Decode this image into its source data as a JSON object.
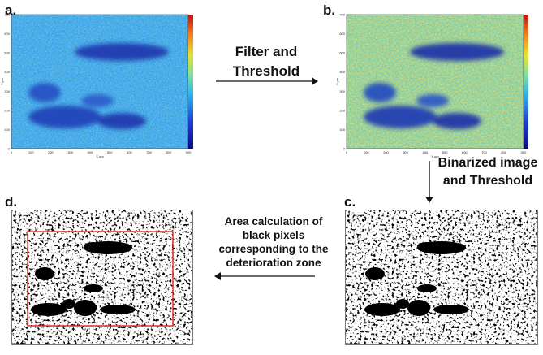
{
  "panels": {
    "a": {
      "label": "a.",
      "xlabel": "X µm",
      "ylabel": "Y µm",
      "xticks": [
        "0",
        "100",
        "200",
        "300",
        "400",
        "500",
        "600",
        "700",
        "800",
        "900"
      ],
      "yticks": [
        "0",
        "100",
        "200",
        "300",
        "400",
        "500",
        "600",
        "700"
      ],
      "colorbar_ticks": [
        "",
        "",
        "",
        "",
        "",
        "",
        "",
        "",
        "",
        ""
      ]
    },
    "b": {
      "label": "b.",
      "xlabel": "X µm",
      "ylabel": "Y µm",
      "xticks": [
        "0",
        "100",
        "200",
        "300",
        "400",
        "500",
        "600",
        "700",
        "800",
        "900"
      ],
      "yticks": [
        "0",
        "100",
        "200",
        "300",
        "400",
        "500",
        "600",
        "700"
      ],
      "colorbar_ticks": [
        "",
        "",
        "",
        "",
        "",
        "",
        "",
        "",
        "",
        ""
      ]
    },
    "c": {
      "label": "c."
    },
    "d": {
      "label": "d."
    }
  },
  "steps": {
    "filter_threshold": "Filter and Threshold",
    "binarized": "Binarized image and Threshold",
    "area_calc": "Area calculation of black pixels corresponding to the deterioration zone"
  },
  "colors": {
    "arrow": "#111111",
    "roi_box": "#e02020",
    "blue_dark": "#1a2fa8",
    "blue_mid": "#2f7fe0",
    "cyan": "#3fc6e0",
    "yellow": "#e8d52a",
    "red": "#d8251e"
  }
}
